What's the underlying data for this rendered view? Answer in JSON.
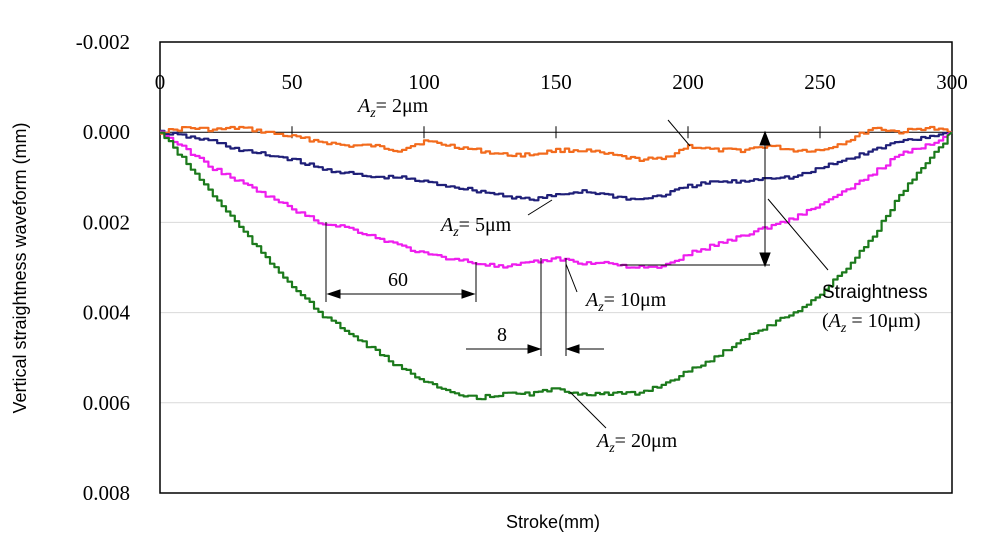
{
  "chart_data": {
    "type": "line",
    "title": "",
    "xlabel": "Stroke(mm)",
    "ylabel": "Vertical straightness waveform (mm)",
    "xlim": [
      0,
      300
    ],
    "ylim": [
      -0.002,
      0.008
    ],
    "y_inverted": true,
    "grid": "horizontal",
    "x_ticks": [
      "0",
      "50",
      "100",
      "150",
      "200",
      "250",
      "300"
    ],
    "y_ticks": [
      "-0.002",
      "0.000",
      "0.002",
      "0.004",
      "0.006",
      "0.008"
    ],
    "series": [
      {
        "name": "Az = 2μm",
        "color": "#f26b1d",
        "x": [
          0,
          10,
          20,
          30,
          40,
          50,
          60,
          70,
          80,
          90,
          100,
          110,
          120,
          130,
          140,
          150,
          160,
          170,
          180,
          190,
          200,
          210,
          220,
          230,
          240,
          250,
          260,
          270,
          280,
          290,
          300
        ],
        "y": [
          0.0,
          -0.0001,
          -5e-05,
          -0.0001,
          0.0,
          0.0001,
          0.0002,
          0.0003,
          0.0003,
          0.0004,
          0.0002,
          0.0003,
          0.0004,
          0.0005,
          0.0005,
          0.0004,
          0.0004,
          0.0005,
          0.0006,
          0.0006,
          0.0003,
          0.0004,
          0.0004,
          0.0003,
          0.0004,
          0.0004,
          0.0002,
          -0.0001,
          0.0,
          -0.0001,
          0.0
        ]
      },
      {
        "name": "Az = 5μm",
        "color": "#1f1f78",
        "x": [
          0,
          10,
          20,
          30,
          40,
          50,
          60,
          70,
          80,
          90,
          100,
          110,
          120,
          130,
          140,
          150,
          160,
          170,
          180,
          190,
          200,
          210,
          220,
          230,
          240,
          250,
          260,
          270,
          280,
          290,
          300
        ],
        "y": [
          0.0,
          0.0001,
          0.0002,
          0.0004,
          0.0005,
          0.0006,
          0.0008,
          0.0009,
          0.001,
          0.001,
          0.0011,
          0.0012,
          0.0013,
          0.0014,
          0.0015,
          0.0014,
          0.0013,
          0.0014,
          0.0015,
          0.0014,
          0.0012,
          0.0011,
          0.0011,
          0.001,
          0.001,
          0.0008,
          0.0006,
          0.0004,
          0.0002,
          0.0001,
          0.0
        ]
      },
      {
        "name": "Az = 10μm",
        "color": "#ee1eee",
        "x": [
          0,
          10,
          20,
          30,
          40,
          50,
          60,
          70,
          80,
          90,
          100,
          110,
          120,
          130,
          140,
          150,
          160,
          170,
          180,
          190,
          200,
          210,
          220,
          230,
          240,
          250,
          260,
          270,
          280,
          290,
          300
        ],
        "y": [
          0.0,
          0.0004,
          0.0008,
          0.0011,
          0.0014,
          0.0017,
          0.002,
          0.0021,
          0.0023,
          0.0025,
          0.0027,
          0.0028,
          0.0029,
          0.003,
          0.0029,
          0.0028,
          0.0029,
          0.0029,
          0.003,
          0.003,
          0.0027,
          0.0025,
          0.0023,
          0.0021,
          0.0019,
          0.0016,
          0.0013,
          0.0009,
          0.0005,
          0.0003,
          0.0
        ]
      },
      {
        "name": "Az = 20μm",
        "color": "#1c7a1c",
        "x": [
          0,
          10,
          20,
          30,
          40,
          50,
          60,
          70,
          80,
          90,
          100,
          110,
          120,
          130,
          140,
          150,
          160,
          170,
          180,
          190,
          200,
          210,
          220,
          230,
          240,
          250,
          260,
          270,
          280,
          290,
          300
        ],
        "y": [
          0.0,
          0.0007,
          0.0014,
          0.0021,
          0.0028,
          0.0034,
          0.004,
          0.0044,
          0.0048,
          0.0052,
          0.0055,
          0.0058,
          0.0059,
          0.0058,
          0.0058,
          0.0057,
          0.0058,
          0.0058,
          0.0058,
          0.0056,
          0.0053,
          0.005,
          0.0046,
          0.0043,
          0.004,
          0.0036,
          0.003,
          0.0023,
          0.0014,
          0.0007,
          0.0
        ]
      }
    ],
    "annotations": {
      "label_2": "= 2μm",
      "label_5": "= 5μm",
      "label_10": "= 10μm",
      "label_20": "= 20μm",
      "az_symbol": "A",
      "az_subscript": "z",
      "dim_60": "60",
      "dim_8": "8",
      "straightness_line1": "Straightness",
      "straightness_line2_open": "(",
      "straightness_line2_close": " = 10μm)"
    }
  }
}
